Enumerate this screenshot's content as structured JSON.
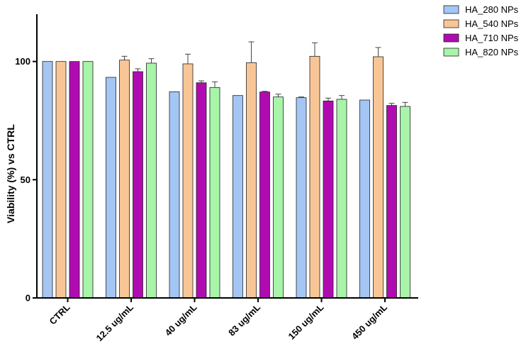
{
  "chart_data": {
    "type": "bar",
    "ylabel": "Viability (%) vs CTRL",
    "xlabel": "",
    "ylim": [
      0,
      120
    ],
    "yticks": [
      0,
      50,
      100
    ],
    "legend_position": "top-right",
    "grid": false,
    "categories": [
      "CTRL",
      "12.5 ug/mL",
      "40 ug/mL",
      "83 ug/mL",
      "150 ug/mL",
      "450 ug/mL"
    ],
    "series": [
      {
        "name": "HA_280 NPs",
        "color": "#a4c6f4",
        "values": [
          100,
          93.3,
          87.2,
          85.6,
          84.7,
          83.7
        ],
        "errors": [
          0,
          0,
          0,
          0,
          0.3,
          0
        ]
      },
      {
        "name": "HA_540 NPs",
        "color": "#f8c696",
        "values": [
          100,
          100.6,
          99.0,
          99.5,
          102.2,
          102.0
        ],
        "errors": [
          0,
          1.6,
          4.1,
          8.8,
          5.7,
          3.9
        ]
      },
      {
        "name": "HA_710 NPs",
        "color": "#b00bb0",
        "values": [
          100,
          95.7,
          91.0,
          87.1,
          83.3,
          81.4
        ],
        "errors": [
          0,
          1.2,
          0.8,
          0.3,
          1.2,
          0.9
        ]
      },
      {
        "name": "HA_820 NPs",
        "color": "#a8f4a8",
        "values": [
          100,
          99.3,
          89.0,
          85.0,
          84.0,
          81.0
        ],
        "errors": [
          0,
          1.9,
          2.4,
          1.2,
          1.6,
          1.7
        ]
      }
    ]
  }
}
